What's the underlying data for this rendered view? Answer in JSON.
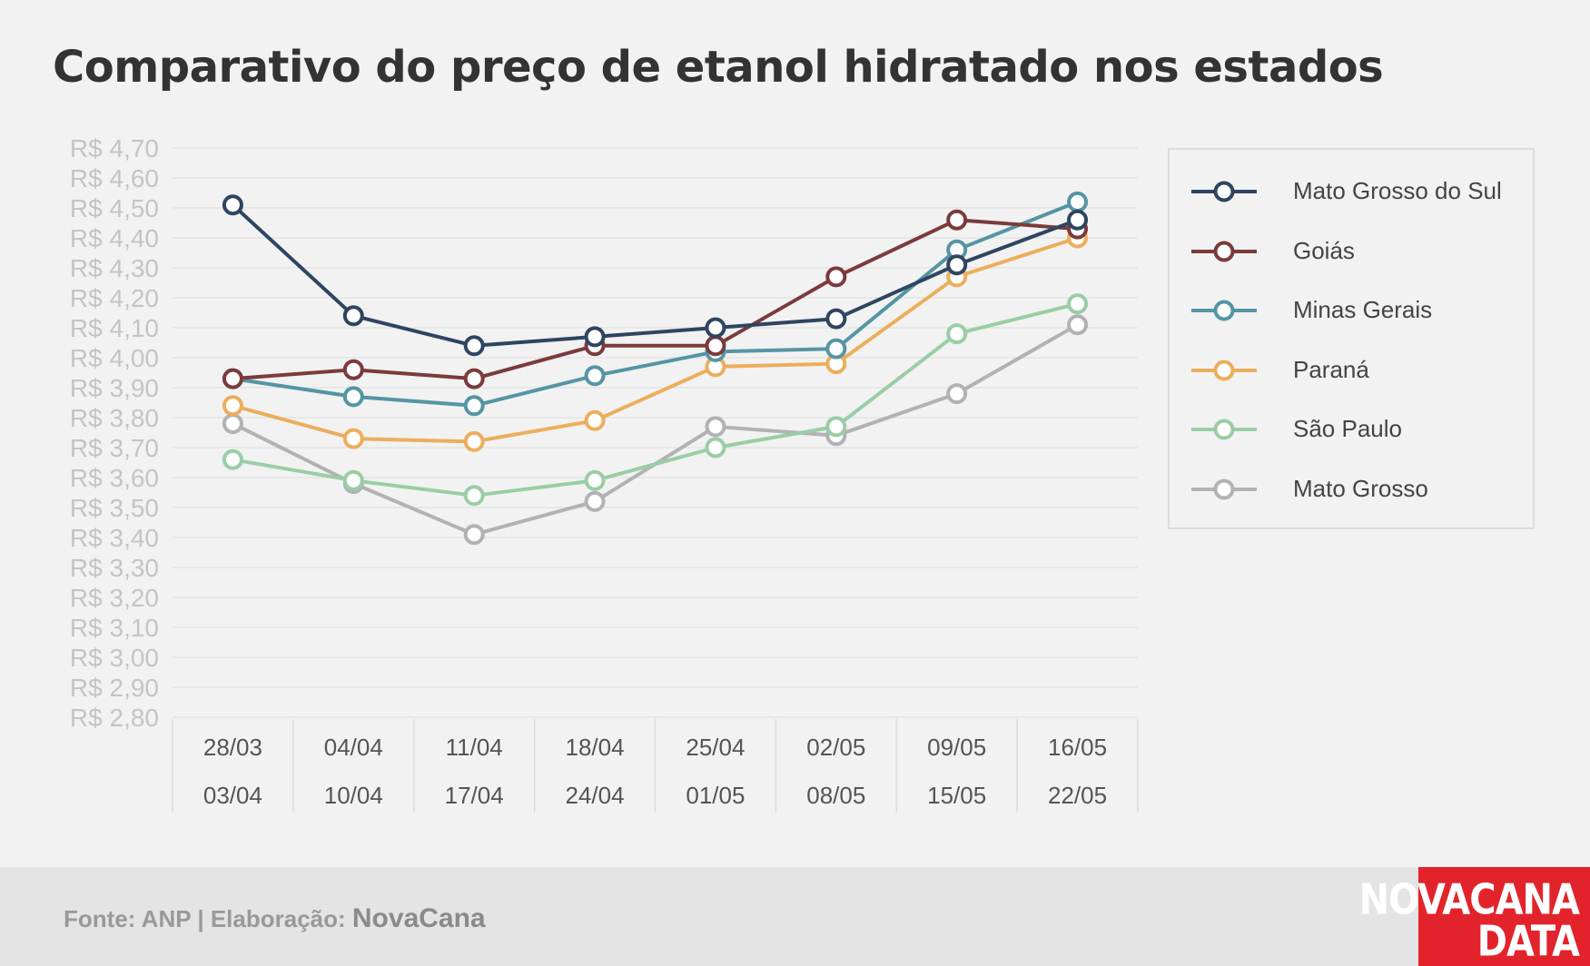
{
  "title": "Comparativo do preço de etanol hidratado nos estados",
  "footer": {
    "source_label": "Fonte: ANP | Elaboração:",
    "brand": "NovaCana"
  },
  "logo": {
    "line1": "NOVACANA",
    "line2": "DATA"
  },
  "chart_data": {
    "type": "line",
    "categories": [
      [
        "28/03",
        "03/04"
      ],
      [
        "04/04",
        "10/04"
      ],
      [
        "11/04",
        "17/04"
      ],
      [
        "18/04",
        "24/04"
      ],
      [
        "25/04",
        "01/05"
      ],
      [
        "02/05",
        "08/05"
      ],
      [
        "09/05",
        "15/05"
      ],
      [
        "16/05",
        "22/05"
      ]
    ],
    "ylim": [
      2.8,
      4.7
    ],
    "yticks": [
      "R$ 2,80",
      "R$ 2,90",
      "R$ 3,00",
      "R$ 3,10",
      "R$ 3,20",
      "R$ 3,30",
      "R$ 3,40",
      "R$ 3,50",
      "R$ 3,60",
      "R$ 3,70",
      "R$ 3,80",
      "R$ 3,90",
      "R$ 4,00",
      "R$ 4,10",
      "R$ 4,20",
      "R$ 4,30",
      "R$ 4,40",
      "R$ 4,50",
      "R$ 4,60",
      "R$ 4,70"
    ],
    "grid": true,
    "legend_position": "right",
    "series": [
      {
        "name": "Mato Grosso do Sul",
        "color": "#2e4561",
        "values": [
          4.51,
          4.14,
          4.04,
          4.07,
          4.1,
          4.13,
          4.31,
          4.46
        ]
      },
      {
        "name": "Goiás",
        "color": "#7b3a3c",
        "values": [
          3.93,
          3.96,
          3.93,
          4.04,
          4.04,
          4.27,
          4.46,
          4.43
        ]
      },
      {
        "name": "Minas Gerais",
        "color": "#5595a3",
        "values": [
          3.93,
          3.87,
          3.84,
          3.94,
          4.02,
          4.03,
          4.36,
          4.52
        ]
      },
      {
        "name": "Paraná",
        "color": "#ecae5c",
        "values": [
          3.84,
          3.73,
          3.72,
          3.79,
          3.97,
          3.98,
          4.27,
          4.4
        ]
      },
      {
        "name": "São Paulo",
        "color": "#9acda5",
        "values": [
          3.66,
          3.59,
          3.54,
          3.59,
          3.7,
          3.77,
          4.08,
          4.18
        ]
      },
      {
        "name": "Mato Grosso",
        "color": "#b2b2b2",
        "values": [
          3.78,
          3.58,
          3.41,
          3.52,
          3.77,
          3.74,
          3.88,
          4.11
        ]
      }
    ]
  }
}
